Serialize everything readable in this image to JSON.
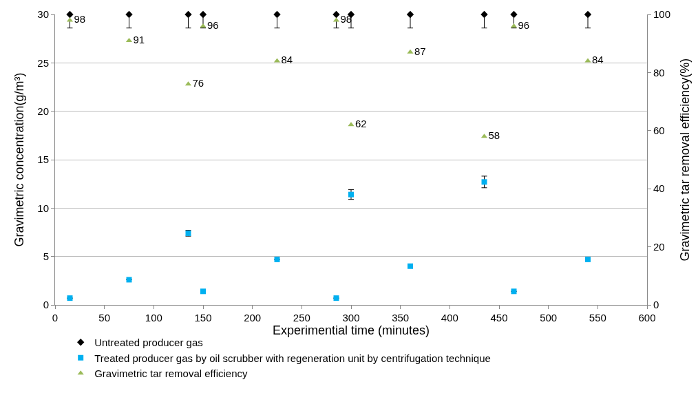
{
  "chart_data": {
    "type": "scatter",
    "xlabel": "Experimential time (minutes)",
    "ylabel": "Gravimetric concentration(g/m³)",
    "y2label": "Gravimetric tar removal efficiency(%)",
    "x": [
      15,
      75,
      135,
      150,
      225,
      285,
      300,
      360,
      435,
      465,
      540
    ],
    "series": [
      {
        "name": "Untreated producer gas",
        "color": "#000000",
        "marker": "diamond",
        "values": [
          30,
          30,
          30,
          30,
          30,
          30,
          30,
          30,
          30,
          30,
          30
        ],
        "errors": [
          [
            28.6,
            30
          ],
          [
            28.6,
            30
          ],
          [
            28.6,
            30
          ],
          [
            28.6,
            30
          ],
          [
            28.6,
            30
          ],
          [
            28.6,
            30
          ],
          [
            28.6,
            30
          ],
          [
            28.6,
            30
          ],
          [
            28.6,
            30
          ],
          [
            28.6,
            30
          ],
          [
            28.6,
            30
          ]
        ]
      },
      {
        "name": "Treated producer gas by oil scrubber with regeneration unit by centrifugation technique",
        "color": "#00b0f0",
        "marker": "square",
        "values": [
          0.7,
          2.6,
          7.4,
          1.4,
          4.7,
          0.7,
          11.4,
          4.0,
          12.7,
          1.4,
          4.7
        ],
        "errors": [
          null,
          null,
          [
            7.1,
            7.7
          ],
          null,
          null,
          null,
          [
            10.9,
            11.9
          ],
          null,
          [
            12.1,
            13.3
          ],
          null,
          null
        ]
      },
      {
        "name": "Gravimetric tar removal efficiency",
        "color": "#9bbb59",
        "marker": "triangle",
        "axis": "y2",
        "data_labels": true,
        "values": [
          98,
          91,
          76,
          96,
          84,
          98,
          62,
          87,
          58,
          96,
          84
        ]
      }
    ],
    "xlim": [
      0,
      600
    ],
    "xticks": [
      0,
      50,
      100,
      150,
      200,
      250,
      300,
      350,
      400,
      450,
      500,
      550,
      600
    ],
    "ylim": [
      0,
      30
    ],
    "yticks": [
      0,
      5,
      10,
      15,
      20,
      25,
      30
    ],
    "y2lim": [
      0,
      100
    ],
    "y2ticks": [
      0,
      20,
      40,
      60,
      80,
      100
    ],
    "grid": "y",
    "legend": "bottom"
  }
}
